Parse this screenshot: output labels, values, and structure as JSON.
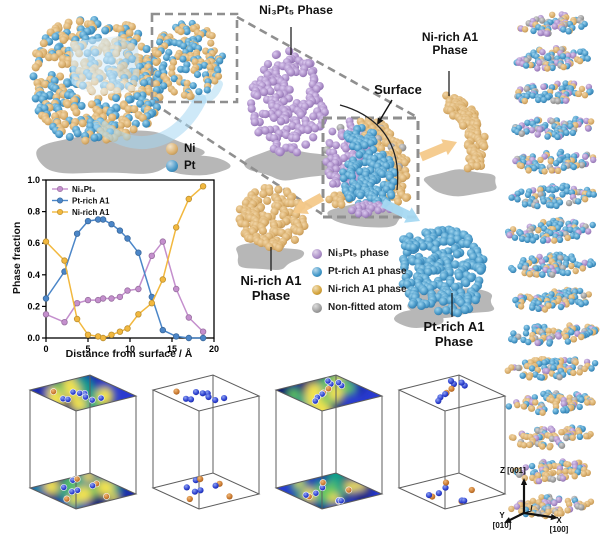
{
  "labels": {
    "ni3pt5_phase": "Ni₃Pt₅ Phase",
    "surface": "Surface",
    "ni_rich_a1_right_line1": "Ni-rich A1",
    "ni_rich_a1_right_line2": "Phase",
    "ni_rich_a1_left_line1": "Ni-rich A1",
    "ni_rich_a1_left_line2": "Phase",
    "pt_rich_a1_line1": "Pt-rich A1",
    "pt_rich_a1_line2": "Phase"
  },
  "atom_legend": {
    "items": [
      {
        "name": "Ni",
        "color": "#D9AE6B"
      },
      {
        "name": "Pt",
        "color": "#4596C6"
      }
    ]
  },
  "phase_legend": {
    "items": [
      {
        "name": "Ni₃Pt₅ phase",
        "color": "#A98BC6"
      },
      {
        "name": "Pt-rich A1 phase",
        "color": "#3E96C8"
      },
      {
        "name": "Ni-rich A1 phase",
        "color": "#D4A33A"
      },
      {
        "name": "Non-fitted atom",
        "color": "#9C9C9C"
      }
    ]
  },
  "axes_triad": {
    "z": "Z [001]",
    "x_letter": "X",
    "x_index": "[100]",
    "y_letter": "Y",
    "y_index": "[010]"
  },
  "palette": {
    "atom_ni_tan": "#D9AE6B",
    "atom_pt_blue": "#4596C6",
    "atom_ni3pt5_purple": "#A98BC6",
    "atom_gray": "#9C9C9C",
    "shadow_gray": "#B7B7B7",
    "dashed_line_gray": "#8F8F8F",
    "arrow_orange": "#F4C98A",
    "arrow_blue": "#A6D9F2",
    "heatmap_base_blue": "#2A3BD0",
    "heatmap_yellow": "#F4E44D",
    "heatmap_teal": "#0DA089",
    "box_atom_blue": "#2B3FD0",
    "box_atom_orange": "#C87830"
  },
  "chart_data": {
    "type": "line",
    "title": "",
    "xlabel": "Distance from surface / Å",
    "ylabel": "Phase fraction",
    "xlim": [
      0,
      20
    ],
    "ylim": [
      0.0,
      1.0
    ],
    "xticks": [
      0,
      5,
      10,
      15,
      20
    ],
    "yticks": [
      0.0,
      0.2,
      0.4,
      0.6,
      0.8,
      1.0
    ],
    "xticklabels": [
      "0",
      "5",
      "10",
      "15",
      "20"
    ],
    "yticklabels": [
      "0.0",
      "0.2",
      "0.4",
      "0.6",
      "0.8",
      "1.0"
    ],
    "grid": false,
    "legend_position": "upper left inside",
    "x": [
      0,
      2.2,
      3.7,
      5.0,
      6.2,
      6.8,
      7.8,
      8.8,
      9.7,
      11.0,
      12.6,
      13.9,
      15.5,
      17.0,
      18.7
    ],
    "series": [
      {
        "name": "Ni₃Pt₅",
        "color": "#C48FCD",
        "values": [
          0.15,
          0.1,
          0.22,
          0.24,
          0.24,
          0.25,
          0.25,
          0.26,
          0.3,
          0.31,
          0.52,
          0.61,
          0.31,
          0.13,
          0.04
        ]
      },
      {
        "name": "Pt-rich A1",
        "color": "#4B86C8",
        "values": [
          0.25,
          0.42,
          0.66,
          0.74,
          0.75,
          0.75,
          0.72,
          0.68,
          0.63,
          0.54,
          0.26,
          0.05,
          0.01,
          0.0,
          0.0
        ]
      },
      {
        "name": "Ni-rich A1",
        "color": "#F2B83E",
        "values": [
          0.61,
          0.49,
          0.12,
          0.02,
          0.01,
          0.0,
          0.02,
          0.04,
          0.06,
          0.15,
          0.22,
          0.37,
          0.7,
          0.88,
          0.96
        ]
      }
    ]
  }
}
